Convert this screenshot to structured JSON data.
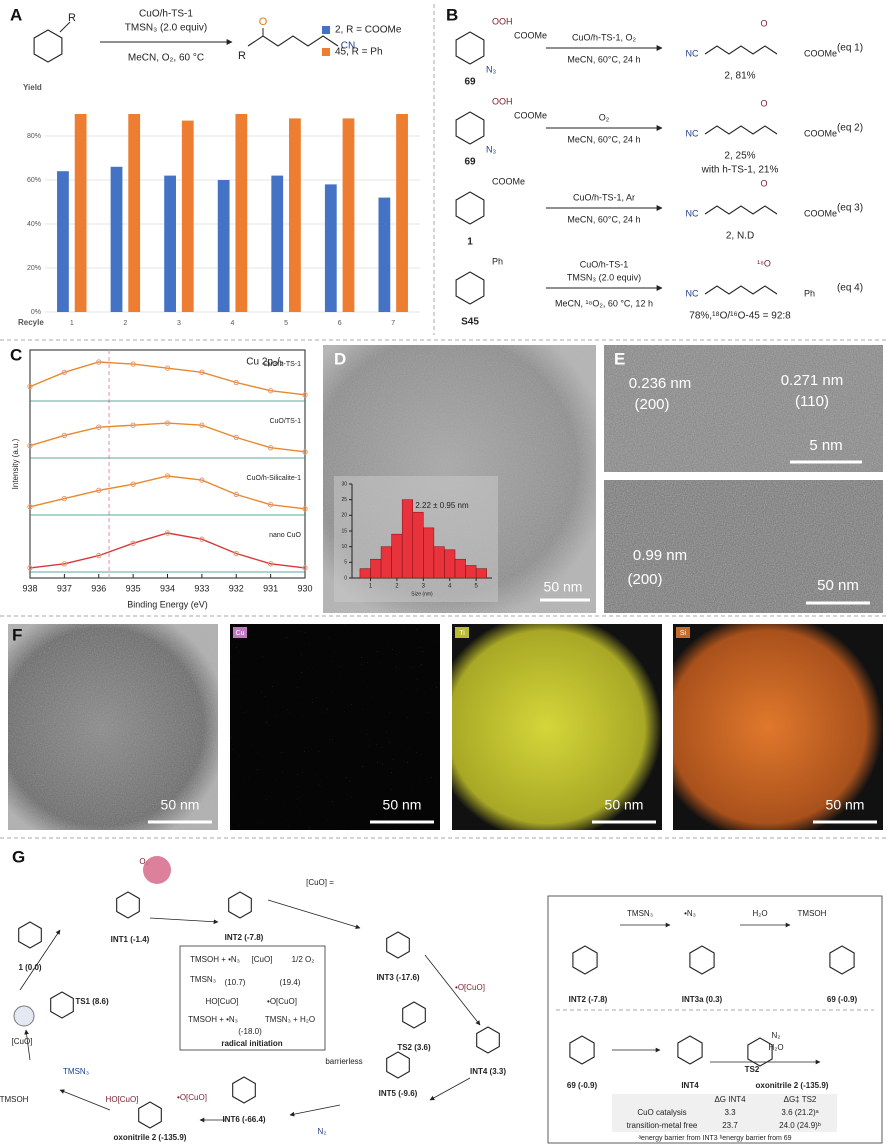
{
  "panel_labels": [
    "A",
    "B",
    "C",
    "D",
    "E",
    "F",
    "G"
  ],
  "scheme_a": {
    "r_label": "R",
    "catalyst": "CuO/h-TS-1",
    "azide": "TMSN₃ (2.0 equiv)",
    "conditions": "MeCN, O₂, 60 °C",
    "product_r": "R",
    "carbonyl": "O",
    "product_cn": "CN"
  },
  "chart_data": [
    {
      "type": "bar",
      "y_label": "Yield",
      "x_label": "Recyle",
      "categories": [
        "1",
        "2",
        "3",
        "4",
        "5",
        "6",
        "7"
      ],
      "series": [
        {
          "name": "2, R = COOMe",
          "color": "#4472c4",
          "values": [
            64,
            66,
            62,
            60,
            62,
            58,
            52
          ]
        },
        {
          "name": "45, R = Ph",
          "color": "#ed7d31",
          "values": [
            90,
            90,
            87,
            90,
            88,
            88,
            90
          ]
        }
      ],
      "ylim": [
        0,
        100
      ],
      "yticks": [
        {
          "value": 0,
          "label": "0%"
        },
        {
          "value": 20,
          "label": "20%"
        },
        {
          "value": 40,
          "label": "40%"
        },
        {
          "value": 60,
          "label": "60%"
        },
        {
          "value": 80,
          "label": "80%"
        }
      ],
      "grid": true
    },
    {
      "type": "spectrum",
      "title": "Cu 2p₃/₂",
      "x_label": "Binding Energy (eV)",
      "y_label": "Intensity (a.u.)",
      "xlim": [
        938,
        930
      ],
      "xticks": [
        938,
        937,
        936,
        935,
        934,
        933,
        932,
        931,
        930
      ],
      "x": [
        938,
        937,
        936,
        935,
        934,
        933,
        932,
        931,
        930
      ],
      "series": [
        {
          "name": "CuO/h-TS-1",
          "color": "#e8892b",
          "values": [
            0.35,
            0.7,
            0.95,
            0.9,
            0.8,
            0.7,
            0.45,
            0.25,
            0.15
          ]
        },
        {
          "name": "CuO/TS-1",
          "color": "#e8892b",
          "values": [
            0.3,
            0.55,
            0.75,
            0.8,
            0.85,
            0.8,
            0.5,
            0.25,
            0.15
          ]
        },
        {
          "name": "CuO/h-Silicalite-1",
          "color": "#e8892b",
          "values": [
            0.2,
            0.4,
            0.6,
            0.75,
            0.95,
            0.85,
            0.5,
            0.25,
            0.15
          ]
        },
        {
          "name": "nano CuO",
          "color": "#d9383a",
          "values": [
            0.1,
            0.2,
            0.4,
            0.7,
            0.95,
            0.8,
            0.45,
            0.2,
            0.1
          ]
        }
      ],
      "reference_line": 935.7
    },
    {
      "type": "histogram",
      "title": "2.22 ± 0.95 nm",
      "x_label": "Size (nm)",
      "bins": [
        0.6,
        1.0,
        1.4,
        1.8,
        2.2,
        2.6,
        3.0,
        3.4,
        3.8,
        4.2,
        4.6,
        5.0,
        5.4
      ],
      "values": [
        3,
        6,
        10,
        14,
        25,
        21,
        16,
        10,
        9,
        6,
        4,
        3
      ],
      "xlim": [
        0.3,
        5.6
      ],
      "xticks": [
        1,
        2,
        3,
        4,
        5
      ],
      "ylim": [
        0,
        30
      ],
      "yticks": [
        0,
        5,
        10,
        15,
        20,
        25,
        30
      ],
      "color": "#e8323c"
    }
  ],
  "scheme_b": [
    {
      "reactant": "69",
      "groups": [
        "OOH",
        "COOMe",
        "N₃"
      ],
      "above": [
        "CuO/h-TS-1, O₂"
      ],
      "below": "MeCN, 60°C, 24 h",
      "product_groups": [
        "NC",
        "O",
        "COOMe"
      ],
      "product": "2, 81%",
      "tag": "(eq 1)"
    },
    {
      "reactant": "69",
      "groups": [
        "OOH",
        "COOMe",
        "N₃"
      ],
      "above": [
        "O₂"
      ],
      "below": "MeCN, 60°C, 24 h",
      "product_groups": [
        "NC",
        "O",
        "COOMe"
      ],
      "product": "2, 25%",
      "note": "with h-TS-1, 21%",
      "tag": "(eq 2)"
    },
    {
      "reactant": "1",
      "groups": [
        "COOMe"
      ],
      "above": [
        "CuO/h-TS-1, Ar"
      ],
      "below": "MeCN, 60°C, 24 h",
      "product_groups": [
        "NC",
        "O",
        "COOMe"
      ],
      "product": "2, N.D",
      "tag": "(eq 3)"
    },
    {
      "reactant": "S45",
      "groups": [
        "Ph"
      ],
      "above": [
        "CuO/h-TS-1",
        "TMSN₃ (2.0 equiv)"
      ],
      "below": "MeCN, ¹⁸O₂, 60 °C, 12 h",
      "product_groups": [
        "NC",
        "¹⁸O",
        "Ph"
      ],
      "product": "78%,¹⁸O/¹⁶O-45 = 92:8",
      "tag": "(eq 4)"
    }
  ],
  "tem": {
    "d_scale": "50 nm",
    "e_top": [
      "0.236 nm",
      "(200)",
      "0.271 nm",
      "(110)"
    ],
    "e_top_scale": "5 nm",
    "e_bottom": [
      "0.99 nm",
      "(200)"
    ],
    "e_bottom_scale": "50 nm",
    "f": [
      {
        "scale": "50 nm"
      },
      {
        "element": "Cu",
        "scale": "50 nm"
      },
      {
        "element": "Ti",
        "scale": "50 nm"
      },
      {
        "element": "Si",
        "scale": "50 nm"
      }
    ]
  },
  "mechanism": {
    "labels": [
      "1 (0.0)",
      "INT1 (-1.4)",
      "O₂",
      "INT2 (-7.8)",
      "[CuO] =",
      "INT3 (-17.6)",
      "•O[CuO]",
      "INT4 (3.3)",
      "TS2 (3.6)",
      "INT5 (-9.6)",
      "barrierless",
      "N₂",
      "INT6 (-66.4)",
      "•O[CuO]",
      "HO[CuO]",
      "oxonitrile 2 (-135.9)",
      "TMSN₃",
      "TMSOH",
      "[CuO]",
      "•N₃",
      "TS1 (8.6)"
    ],
    "cycle_box": [
      "TMSOH + •N₃",
      "[CuO]",
      "1/2 O₂",
      "TMSN₃",
      "(10.7)",
      "(19.4)",
      "HO[CuO]",
      "•O[CuO]",
      "TMSOH + •N₃",
      "TMSN₃ + H₂O",
      "(-18.0)",
      "radical initiation"
    ],
    "side_box": [
      "INT2 (-7.8)",
      "TMSN₃",
      "•N₃",
      "INT3a (0.3)",
      "H₂O",
      "TMSOH",
      "69 (-0.9)",
      "69 (-0.9)",
      "INT4",
      "TS2",
      "N₂",
      "H₂O",
      "oxonitrile 2 (-135.9)"
    ],
    "table": {
      "header": [
        "ΔG INT4",
        "ΔG‡ TS2"
      ],
      "rows": [
        [
          "CuO catalysis",
          3.3,
          "3.6 (21.2)ᵃ"
        ],
        [
          "transition-metal free",
          23.7,
          "24.0 (24.9)ᵇ"
        ]
      ],
      "footnote": "ᵃenergy barrier from INT3   ᵇenergy barrier from 69"
    }
  }
}
